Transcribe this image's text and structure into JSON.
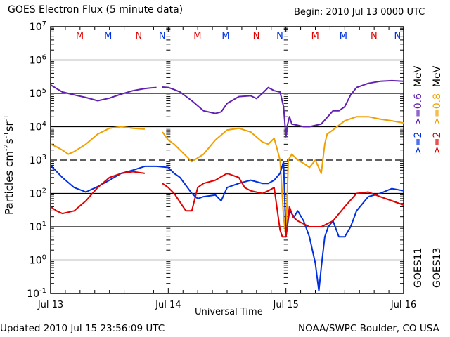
{
  "chart_data": {
    "type": "line",
    "title": "GOES Electron Flux (5 minute data)",
    "begin_label": "Begin: 2010 Jul 13 0000 UTC",
    "xlabel": "Universal Time",
    "ylabel": "Particles cm",
    "ylabel_parts": [
      "Particles cm",
      "-2",
      "s",
      "-1",
      "sr",
      "-1"
    ],
    "yscale": "log",
    "ylim": [
      0.1,
      10000000
    ],
    "xlim_days": [
      0,
      3
    ],
    "x_ticks": [
      "Jul 13",
      "Jul 14",
      "Jul 15",
      "Jul 16"
    ],
    "y_ticks": [
      {
        "base": "10",
        "exp": "7",
        "value": 10000000
      },
      {
        "base": "10",
        "exp": "6",
        "value": 1000000
      },
      {
        "base": "10",
        "exp": "5",
        "value": 100000
      },
      {
        "base": "10",
        "exp": "4",
        "value": 10000
      },
      {
        "base": "10",
        "exp": "3",
        "value": 1000
      },
      {
        "base": "10",
        "exp": "2",
        "value": 100
      },
      {
        "base": "10",
        "exp": "1",
        "value": 10
      },
      {
        "base": "10",
        "exp": "0",
        "value": 1
      },
      {
        "base": "10",
        "exp": "-1",
        "value": 0.1
      }
    ],
    "threshold_dashed": 1000,
    "markers": [
      {
        "label": "M",
        "day": 0.32,
        "color": "#e00000"
      },
      {
        "label": "M",
        "day": 0.56,
        "color": "#0030e0"
      },
      {
        "label": "N",
        "day": 0.82,
        "color": "#e00000"
      },
      {
        "label": "N",
        "day": 1.02,
        "color": "#0030e0"
      },
      {
        "label": "M",
        "day": 1.32,
        "color": "#e00000"
      },
      {
        "label": "M",
        "day": 1.56,
        "color": "#0030e0"
      },
      {
        "label": "N",
        "day": 1.82,
        "color": "#e00000"
      },
      {
        "label": "N",
        "day": 2.02,
        "color": "#0030e0"
      },
      {
        "label": "M",
        "day": 2.32,
        "color": "#e00000"
      },
      {
        "label": "M",
        "day": 2.56,
        "color": "#0030e0"
      },
      {
        "label": "N",
        "day": 2.82,
        "color": "#e00000"
      },
      {
        "label": "N",
        "day": 3.02,
        "color": "#0030e0"
      }
    ],
    "legend": {
      "placement": "right",
      "rows": [
        {
          "satellite": "GOES11",
          "entries": [
            {
              "text": ">=2",
              "color": "#0030e0"
            },
            {
              "text": ">=0.6",
              "color": "#6020b0"
            }
          ],
          "unit": "MeV"
        },
        {
          "satellite": "GOES13",
          "entries": [
            {
              "text": ">=2",
              "color": "#e00000"
            },
            {
              "text": ">=0.8",
              "color": "#f0a000"
            }
          ],
          "unit": "MeV"
        }
      ]
    },
    "series": [
      {
        "name": "GOES11 >=0.6 MeV",
        "color": "#6020b0",
        "x": [
          0,
          0.05,
          0.1,
          0.15,
          0.2,
          0.3,
          0.4,
          0.5,
          0.6,
          0.7,
          0.75,
          0.8,
          0.85,
          0.9,
          null,
          0.95,
          1.0,
          1.05,
          1.1,
          1.2,
          1.3,
          1.4,
          1.45,
          1.5,
          1.6,
          1.7,
          1.75,
          1.8,
          1.85,
          1.9,
          1.95,
          1.98,
          2.0,
          2.01,
          2.03,
          2.05,
          2.1,
          2.15,
          2.2,
          2.3,
          2.4,
          2.45,
          2.5,
          2.55,
          2.6,
          2.7,
          2.8,
          2.9,
          3.0
        ],
        "y": [
          180000,
          140000,
          110000,
          100000,
          90000,
          75000,
          60000,
          72000,
          95000,
          120000,
          130000,
          140000,
          145000,
          150000,
          null,
          155000,
          150000,
          130000,
          110000,
          60000,
          30000,
          25000,
          28000,
          50000,
          80000,
          85000,
          70000,
          100000,
          150000,
          120000,
          110000,
          40000,
          5000,
          10000,
          20000,
          12000,
          11000,
          10000,
          10000,
          12000,
          30000,
          30000,
          40000,
          90000,
          150000,
          200000,
          230000,
          240000,
          230000
        ]
      },
      {
        "name": "GOES13 >=0.8 MeV",
        "color": "#f0a000",
        "x": [
          0,
          0.05,
          0.1,
          0.15,
          0.2,
          0.3,
          0.4,
          0.5,
          0.6,
          0.7,
          0.8,
          null,
          0.95,
          1.0,
          1.05,
          1.1,
          1.2,
          1.3,
          1.4,
          1.5,
          1.6,
          1.7,
          1.8,
          1.85,
          1.9,
          1.92,
          1.95,
          1.98,
          2.0,
          2.02,
          2.05,
          2.1,
          2.15,
          2.2,
          2.25,
          2.3,
          2.33,
          2.35,
          2.4,
          2.5,
          2.6,
          2.7,
          2.8,
          2.9,
          3.0
        ],
        "y": [
          3000,
          2500,
          2000,
          1500,
          1800,
          3000,
          6000,
          9000,
          10000,
          9000,
          8500,
          null,
          7000,
          4000,
          3000,
          2000,
          900,
          1500,
          4000,
          8000,
          9000,
          7000,
          3500,
          3000,
          4500,
          2500,
          1000,
          20,
          5,
          1000,
          1500,
          1000,
          800,
          600,
          1000,
          400,
          3000,
          6000,
          8000,
          15000,
          20000,
          20000,
          17000,
          15000,
          13000
        ]
      },
      {
        "name": "GOES11 >=2 MeV",
        "color": "#0030e0",
        "x": [
          0,
          0.1,
          0.2,
          0.3,
          0.4,
          0.5,
          0.6,
          0.7,
          0.8,
          0.9,
          1.0,
          1.05,
          1.1,
          1.2,
          1.25,
          1.3,
          1.4,
          1.45,
          1.5,
          1.6,
          1.7,
          1.8,
          1.85,
          1.9,
          1.95,
          1.98,
          2.0,
          2.03,
          2.07,
          2.1,
          2.15,
          2.2,
          2.25,
          2.28,
          2.3,
          2.33,
          2.36,
          2.4,
          2.45,
          2.5,
          2.55,
          2.6,
          2.7,
          2.8,
          2.9,
          3.0
        ],
        "y": [
          700,
          300,
          150,
          110,
          160,
          250,
          400,
          500,
          650,
          650,
          600,
          400,
          300,
          100,
          70,
          80,
          90,
          60,
          150,
          200,
          250,
          200,
          200,
          250,
          400,
          900,
          5,
          30,
          20,
          30,
          15,
          5,
          0.8,
          0.12,
          0.6,
          5,
          10,
          15,
          5,
          5,
          10,
          30,
          80,
          100,
          140,
          120
        ]
      },
      {
        "name": "GOES13 >=2 MeV",
        "color": "#e00000",
        "x": [
          0,
          0.05,
          0.1,
          0.2,
          0.3,
          0.4,
          0.5,
          0.6,
          0.7,
          0.8,
          null,
          0.95,
          1.0,
          1.05,
          1.15,
          1.2,
          1.25,
          1.3,
          1.4,
          1.5,
          1.6,
          1.65,
          1.7,
          1.8,
          1.85,
          1.9,
          1.95,
          1.97,
          2.0,
          2.03,
          2.06,
          2.1,
          2.2,
          2.3,
          2.4,
          2.5,
          2.6,
          2.7,
          2.8,
          2.9,
          3.0
        ],
        "y": [
          40,
          30,
          25,
          30,
          60,
          150,
          300,
          400,
          450,
          400,
          null,
          200,
          150,
          100,
          30,
          30,
          150,
          200,
          250,
          400,
          300,
          150,
          120,
          100,
          120,
          150,
          8,
          5,
          5,
          40,
          20,
          15,
          10,
          10,
          15,
          40,
          100,
          110,
          80,
          60,
          45
        ]
      }
    ]
  },
  "footer": {
    "updated": "Updated 2010 Jul 15 23:56:09 UTC",
    "credit": "NOAA/SWPC Boulder, CO USA"
  }
}
